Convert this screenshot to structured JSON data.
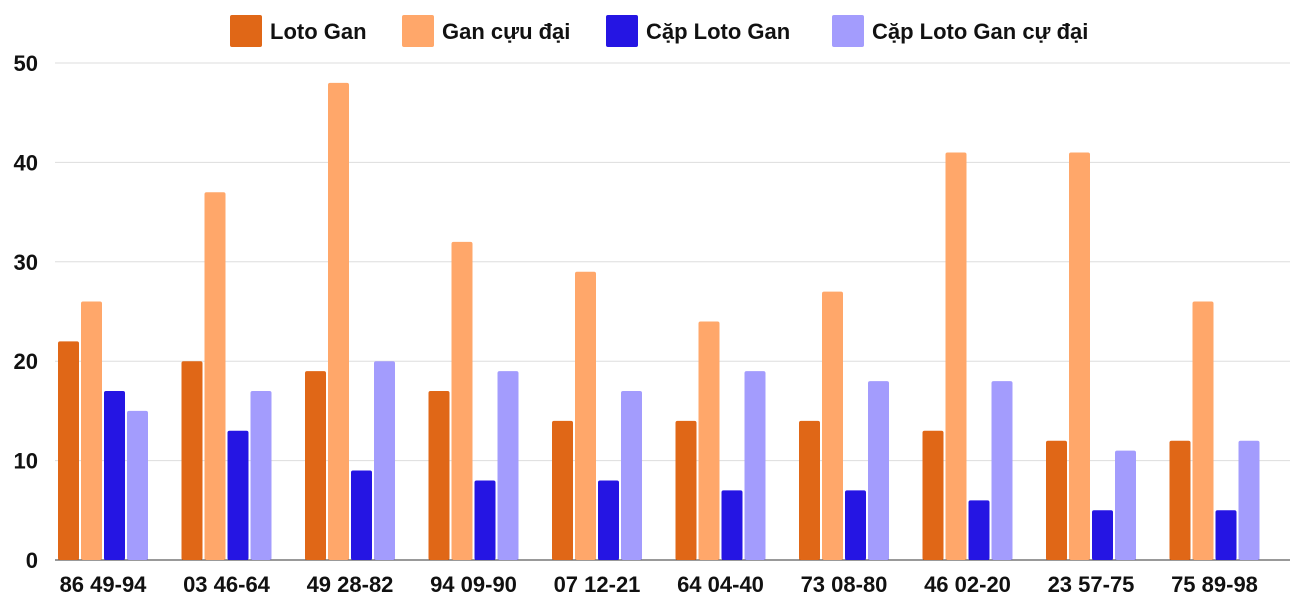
{
  "chart_data": {
    "type": "bar",
    "title": "",
    "xlabel": "",
    "ylabel": "",
    "ylim": [
      0,
      50
    ],
    "yticks": [
      0,
      10,
      20,
      30,
      40,
      50
    ],
    "grid": true,
    "legend_position": "top-center",
    "categories": [
      "86 49-94",
      "03 46-64",
      "49 28-82",
      "94 09-90",
      "07 12-21",
      "64 04-40",
      "73 08-80",
      "46 02-20",
      "23 57-75",
      "75 89-98"
    ],
    "series": [
      {
        "name": "Loto Gan",
        "color": "#e06717",
        "values": [
          22,
          20,
          19,
          17,
          14,
          14,
          14,
          13,
          12,
          12
        ]
      },
      {
        "name": "Gan cựu đại",
        "color": "#ffa76a",
        "values": [
          26,
          37,
          48,
          32,
          29,
          24,
          27,
          41,
          41,
          26
        ]
      },
      {
        "name": "Cặp Loto Gan",
        "color": "#2515e3",
        "values": [
          17,
          13,
          9,
          8,
          8,
          7,
          7,
          6,
          5,
          5
        ]
      },
      {
        "name": "Cặp Loto Gan cự đại",
        "color": "#a39cfd",
        "values": [
          15,
          17,
          20,
          19,
          17,
          19,
          18,
          18,
          11,
          12
        ]
      }
    ]
  }
}
